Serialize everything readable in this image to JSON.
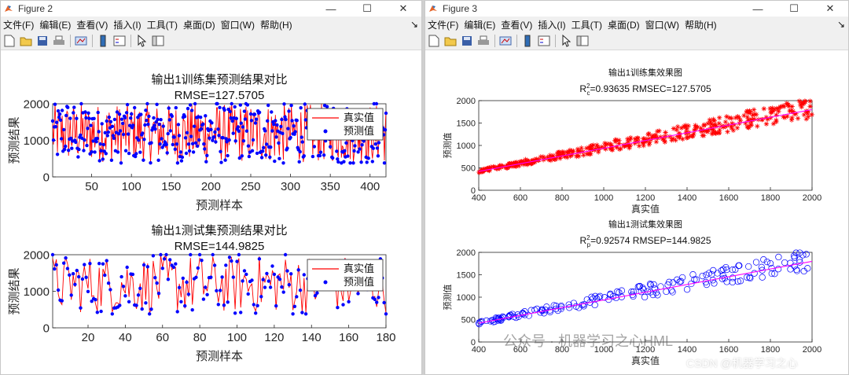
{
  "figure2": {
    "title": "Figure 2",
    "menu": [
      "文件(F)",
      "编辑(E)",
      "查看(V)",
      "插入(I)",
      "工具(T)",
      "桌面(D)",
      "窗口(W)",
      "帮助(H)"
    ],
    "top_plot": {
      "title_line1": "输出1训练集预测结果对比",
      "title_line2": "RMSE=127.5705",
      "xlabel": "预测样本",
      "ylabel": "预测结果"
    },
    "bottom_plot": {
      "title_line1": "输出1测试集预测结果对比",
      "title_line2": "RMSE=144.9825",
      "xlabel": "预测样本",
      "ylabel": "预测结果"
    },
    "legend": {
      "true_label": "真实值",
      "pred_label": "预测值"
    }
  },
  "figure3": {
    "title": "Figure 3",
    "menu": [
      "文件(F)",
      "编辑(E)",
      "查看(V)",
      "插入(I)",
      "工具(T)",
      "桌面(D)",
      "窗口(W)",
      "帮助(H)"
    ],
    "top_plot": {
      "title_line1": "输出1训练集效果图",
      "r2_sub": "c",
      "r2_value": "=0.93635",
      "rmse_text": "RMSEC=127.5705",
      "xlabel": "真实值",
      "ylabel": "预测值"
    },
    "bottom_plot": {
      "title_line1": "输出1测试集效果图",
      "r2_sub": "p",
      "r2_value": "=0.92574",
      "rmse_text": "RMSEP=144.9825",
      "xlabel": "真实值",
      "ylabel": "预测值"
    }
  },
  "watermark": "公众号 · 机器学习之心HML",
  "csdn_mark": "CSDN @机器学习之心",
  "colors": {
    "true_line": "#ff0000",
    "pred_marker": "#0000ff",
    "fit_line": "#ff00ff"
  },
  "chart_data": [
    {
      "type": "line",
      "title": "输出1训练集预测结果对比",
      "subtitle": "RMSE=127.5705",
      "xlabel": "预测样本",
      "ylabel": "预测结果",
      "xlim": [
        1,
        420
      ],
      "ylim": [
        0,
        2000
      ],
      "xticks": [
        50,
        100,
        150,
        200,
        250,
        300,
        350,
        400
      ],
      "yticks": [
        0,
        1000,
        2000
      ],
      "n_points": 420,
      "value_range": [
        400,
        2000
      ],
      "series": [
        {
          "name": "真实值",
          "style": "red line with + markers"
        },
        {
          "name": "预测值",
          "style": "blue dots"
        }
      ],
      "legend": "top-right"
    },
    {
      "type": "line",
      "title": "输出1测试集预测结果对比",
      "subtitle": "RMSE=144.9825",
      "xlabel": "预测样本",
      "ylabel": "预测结果",
      "xlim": [
        1,
        180
      ],
      "ylim": [
        0,
        2000
      ],
      "xticks": [
        20,
        40,
        60,
        80,
        100,
        120,
        140,
        160,
        180
      ],
      "yticks": [
        0,
        1000,
        2000
      ],
      "n_points": 180,
      "value_range": [
        400,
        2000
      ],
      "series": [
        {
          "name": "真实值",
          "style": "red line with + markers"
        },
        {
          "name": "预测值",
          "style": "blue dots"
        }
      ],
      "legend": "top-right"
    },
    {
      "type": "scatter",
      "title": "输出1训练集效果图",
      "subtitle": "R_c^2=0.93635  RMSEC=127.5705",
      "xlabel": "真实值",
      "ylabel": "预测值",
      "xlim": [
        400,
        2000
      ],
      "ylim": [
        0,
        2000
      ],
      "xticks": [
        400,
        600,
        800,
        1000,
        1200,
        1400,
        1600,
        1800,
        2000
      ],
      "yticks": [
        0,
        500,
        1000,
        1500,
        2000
      ],
      "n_points": 420,
      "marker": "red asterisks",
      "fit_line": {
        "from": [
          400,
          420
        ],
        "to": [
          2000,
          1800
        ]
      }
    },
    {
      "type": "scatter",
      "title": "输出1测试集效果图",
      "subtitle": "R_p^2=0.92574  RMSEP=144.9825",
      "xlabel": "真实值",
      "ylabel": "预测值",
      "xlim": [
        400,
        2000
      ],
      "ylim": [
        0,
        2000
      ],
      "xticks": [
        400,
        600,
        800,
        1000,
        1200,
        1400,
        1600,
        1800,
        2000
      ],
      "yticks": [
        0,
        500,
        1000,
        1500,
        2000
      ],
      "n_points": 180,
      "marker": "blue circles",
      "fit_line": {
        "from": [
          400,
          420
        ],
        "to": [
          2000,
          1800
        ]
      }
    }
  ]
}
